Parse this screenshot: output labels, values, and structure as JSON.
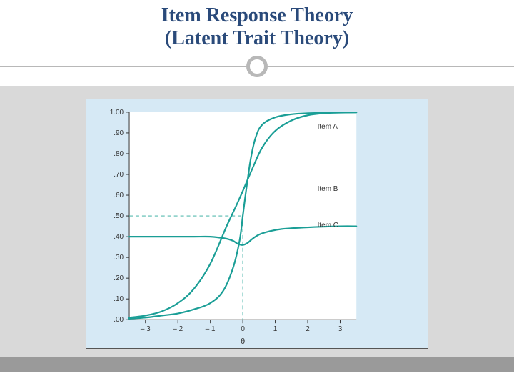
{
  "title": {
    "line1": "Item Response Theory",
    "line2": "(Latent Trait Theory)",
    "color": "#2a4a7a",
    "fontsize": 28
  },
  "divider": {
    "line_color": "#b8b8b8",
    "circle_border": "#b8b8b8",
    "circle_bg": "#ffffff"
  },
  "slide_bg": "#ffffff",
  "content_panel_bg": "#d9d9d9",
  "footer_bar_bg": "#9a9a9a",
  "chart": {
    "type": "line",
    "panel_bg": "#d6e9f5",
    "plot_bg": "#ffffff",
    "border_color": "#555555",
    "axis_color": "#333333",
    "tick_font_size": 10,
    "label_font_size": 11,
    "series_label_font_size": 10,
    "xlim": [
      -3.5,
      3.5
    ],
    "ylim": [
      0,
      1.0
    ],
    "xticks": [
      -3,
      -2,
      -1,
      0,
      1,
      2,
      3
    ],
    "yticks": [
      0.0,
      0.1,
      0.2,
      0.3,
      0.4,
      0.5,
      0.6,
      0.7,
      0.8,
      0.9,
      1.0
    ],
    "ytick_labels": [
      ".00",
      ".10",
      ".20",
      ".30",
      ".40",
      ".50",
      ".60",
      ".70",
      ".80",
      ".90",
      "1.00"
    ],
    "xlabel": "θ",
    "ref_line_color": "#2aa89a",
    "ref_line_dash": "5,4",
    "ref_y": 0.5,
    "ref_x": 0,
    "series": [
      {
        "name": "Item A",
        "label": "Item A",
        "color": "#1a9e96",
        "line_width": 2.2,
        "label_xy": [
          2.3,
          0.92
        ],
        "points": [
          [
            -3.5,
            0.01
          ],
          [
            -3,
            0.02
          ],
          [
            -2.5,
            0.04
          ],
          [
            -2,
            0.08
          ],
          [
            -1.5,
            0.15
          ],
          [
            -1,
            0.27
          ],
          [
            -0.5,
            0.45
          ],
          [
            -0.2,
            0.55
          ],
          [
            0,
            0.62
          ],
          [
            0.3,
            0.73
          ],
          [
            0.6,
            0.83
          ],
          [
            1,
            0.91
          ],
          [
            1.5,
            0.96
          ],
          [
            2,
            0.985
          ],
          [
            2.5,
            0.995
          ],
          [
            3,
            0.998
          ],
          [
            3.5,
            0.999
          ]
        ]
      },
      {
        "name": "Item B",
        "label": "Item B",
        "color": "#1a9e96",
        "line_width": 2.2,
        "label_xy": [
          2.3,
          0.62
        ],
        "points": [
          [
            -3.5,
            0.005
          ],
          [
            -3,
            0.01
          ],
          [
            -2.5,
            0.02
          ],
          [
            -2,
            0.03
          ],
          [
            -1.5,
            0.05
          ],
          [
            -1,
            0.08
          ],
          [
            -0.6,
            0.14
          ],
          [
            -0.3,
            0.25
          ],
          [
            -0.1,
            0.38
          ],
          [
            0,
            0.5
          ],
          [
            0.1,
            0.62
          ],
          [
            0.25,
            0.78
          ],
          [
            0.4,
            0.88
          ],
          [
            0.6,
            0.94
          ],
          [
            1,
            0.975
          ],
          [
            1.5,
            0.99
          ],
          [
            2,
            0.995
          ],
          [
            3,
            0.999
          ],
          [
            3.5,
            0.999
          ]
        ]
      },
      {
        "name": "Item C",
        "label": "Item C",
        "color": "#1a9e96",
        "line_width": 2.2,
        "label_xy": [
          2.3,
          0.445
        ],
        "points": [
          [
            -3.5,
            0.4
          ],
          [
            -3,
            0.4
          ],
          [
            -2.5,
            0.4
          ],
          [
            -2,
            0.4
          ],
          [
            -1.5,
            0.4
          ],
          [
            -1,
            0.4
          ],
          [
            -0.7,
            0.395
          ],
          [
            -0.5,
            0.39
          ],
          [
            -0.3,
            0.38
          ],
          [
            -0.15,
            0.365
          ],
          [
            0,
            0.36
          ],
          [
            0.15,
            0.37
          ],
          [
            0.3,
            0.39
          ],
          [
            0.5,
            0.41
          ],
          [
            0.8,
            0.425
          ],
          [
            1.2,
            0.437
          ],
          [
            2,
            0.445
          ],
          [
            3,
            0.45
          ],
          [
            3.5,
            0.45
          ]
        ]
      }
    ]
  }
}
